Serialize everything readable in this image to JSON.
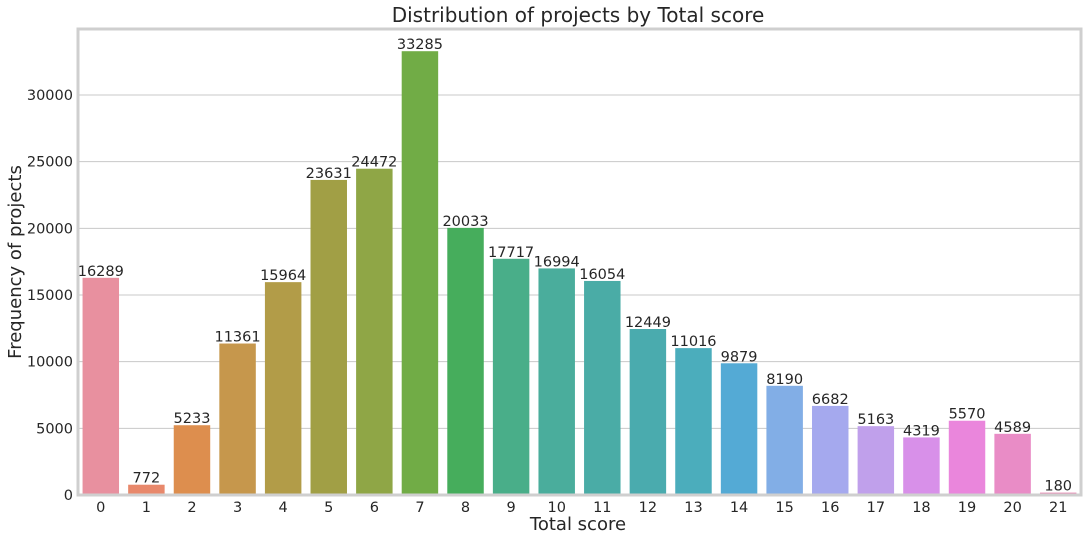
{
  "chart_data": {
    "type": "bar",
    "title": "Distribution of projects by Total score",
    "xlabel": "Total score",
    "ylabel": "Frequency of projects",
    "categories": [
      "0",
      "1",
      "2",
      "3",
      "4",
      "5",
      "6",
      "7",
      "8",
      "9",
      "10",
      "11",
      "12",
      "13",
      "14",
      "15",
      "16",
      "17",
      "18",
      "19",
      "20",
      "21"
    ],
    "values": [
      16289,
      772,
      5233,
      11361,
      15964,
      23631,
      24472,
      33285,
      20033,
      17717,
      16994,
      16054,
      12449,
      11016,
      9879,
      8190,
      6682,
      5163,
      4319,
      5570,
      4589,
      180
    ],
    "data_labels": [
      "16289",
      "772",
      "5233",
      "11361",
      "15964",
      "23631",
      "24472",
      "33285",
      "20033",
      "17717",
      "16994",
      "16054",
      "12449",
      "11016",
      "9879",
      "8190",
      "6682",
      "5163",
      "4319",
      "5570",
      "4589",
      "180"
    ],
    "yticks": [
      0,
      5000,
      10000,
      15000,
      20000,
      25000,
      30000
    ],
    "ylim": [
      0,
      34950
    ],
    "grid": "horizontal",
    "colors": [
      "#e8909f",
      "#e8886b",
      "#dd8e4e",
      "#c6974c",
      "#b29c48",
      "#a19f45",
      "#8fa646",
      "#71ac46",
      "#46ad5c",
      "#49ae89",
      "#4aad9c",
      "#4aaca6",
      "#4aabae",
      "#4badbc",
      "#54aad5",
      "#82aee6",
      "#a5a9ee",
      "#c0a0eb",
      "#d890e9",
      "#ea86dc",
      "#e98cc6",
      "#e98cb5"
    ]
  }
}
